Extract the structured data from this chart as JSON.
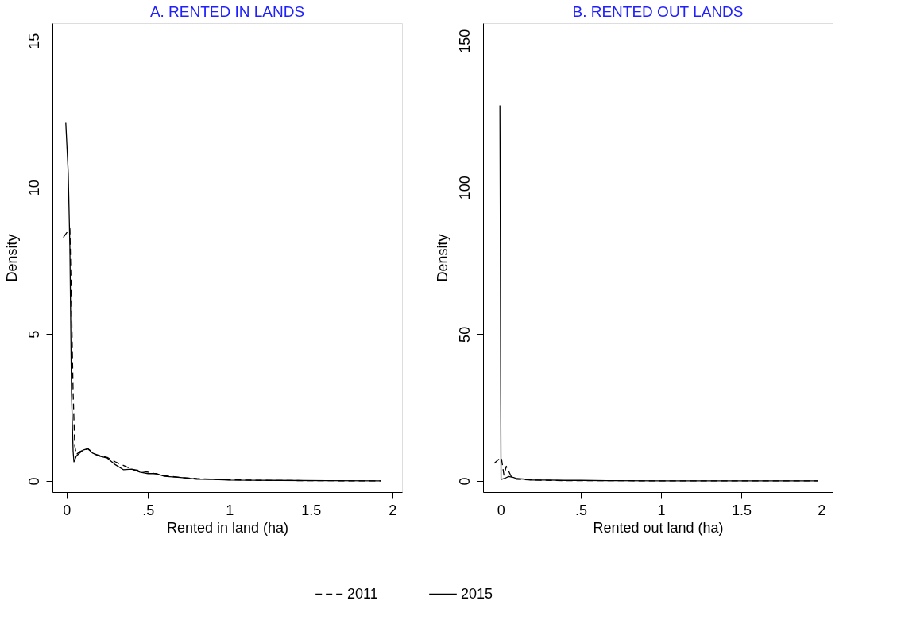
{
  "chart_data": [
    {
      "type": "line",
      "title": "A. RENTED IN LANDS",
      "xlabel": "Rented in land (ha)",
      "ylabel": "Density",
      "xlim": [
        -0.087,
        2.06
      ],
      "ylim": [
        -0.38,
        15.6
      ],
      "xticks": [
        0,
        {
          "value": 0.5,
          "label": ".5"
        },
        1,
        1.5,
        2
      ],
      "yticks": [
        0,
        5,
        10,
        15
      ],
      "grid": false,
      "legend": "bottom",
      "marker": "none",
      "series": [
        {
          "name": "2011",
          "color": "#000000",
          "line_style": "dashed",
          "x": [
            -0.02,
            0.0,
            0.02,
            0.03,
            0.04,
            0.05,
            0.06,
            0.08,
            0.13,
            0.18,
            0.25,
            0.3,
            0.34,
            0.4,
            0.5,
            0.6,
            0.7,
            0.8,
            1.0,
            1.2,
            1.5,
            1.93
          ],
          "values": [
            8.3,
            8.45,
            8.6,
            6,
            3,
            1.2,
            0.9,
            1.0,
            1.1,
            0.9,
            0.8,
            0.65,
            0.55,
            0.4,
            0.3,
            0.18,
            0.12,
            0.08,
            0.04,
            0.02,
            0.01,
            0
          ]
        },
        {
          "name": "2015",
          "color": "#000000",
          "line_style": "solid",
          "x": [
            -0.005,
            0.01,
            0.02,
            0.03,
            0.04,
            0.045,
            0.06,
            0.1,
            0.13,
            0.16,
            0.2,
            0.25,
            0.3,
            0.35,
            0.4,
            0.45,
            0.5,
            0.55,
            0.6,
            0.7,
            0.8,
            0.9,
            1.0,
            1.3,
            1.6,
            1.93
          ],
          "values": [
            12.2,
            10.5,
            8,
            3,
            1.0,
            0.65,
            0.85,
            1.05,
            1.1,
            0.95,
            0.85,
            0.78,
            0.55,
            0.38,
            0.4,
            0.3,
            0.25,
            0.25,
            0.16,
            0.12,
            0.06,
            0.05,
            0.03,
            0.02,
            0.01,
            0
          ]
        }
      ]
    },
    {
      "type": "line",
      "title": "B. RENTED OUT LANDS",
      "xlabel": "Rented out land (ha)",
      "ylabel": "Density",
      "xlim": [
        -0.11,
        2.07
      ],
      "ylim": [
        -3.8,
        156
      ],
      "xticks": [
        0,
        {
          "value": 0.5,
          "label": ".5"
        },
        1,
        1.5,
        2
      ],
      "yticks": [
        0,
        50,
        100,
        150
      ],
      "grid": false,
      "legend": "bottom",
      "marker": "none",
      "series": [
        {
          "name": "2011",
          "color": "#000000",
          "line_style": "dashed",
          "x": [
            -0.04,
            -0.01,
            0.0,
            0.005,
            0.02,
            0.035,
            0.07,
            0.1,
            0.2,
            0.4,
            0.7,
            1.0,
            1.98
          ],
          "values": [
            6,
            7.5,
            8,
            7.5,
            2,
            5,
            1,
            0.6,
            0.3,
            0.1,
            0.1,
            0,
            0
          ]
        },
        {
          "name": "2015",
          "color": "#000000",
          "line_style": "solid",
          "x": [
            -0.005,
            -0.003,
            0.0,
            0.002,
            0.03,
            0.05,
            0.08,
            0.1,
            0.15,
            0.2,
            0.3,
            0.4,
            0.5,
            0.68,
            1.0,
            1.98
          ],
          "values": [
            128,
            96,
            30,
            0.5,
            1.0,
            1.5,
            1.2,
            0.8,
            0.6,
            0.3,
            0.3,
            0.2,
            0.2,
            0.1,
            0,
            0
          ]
        }
      ]
    }
  ]
}
